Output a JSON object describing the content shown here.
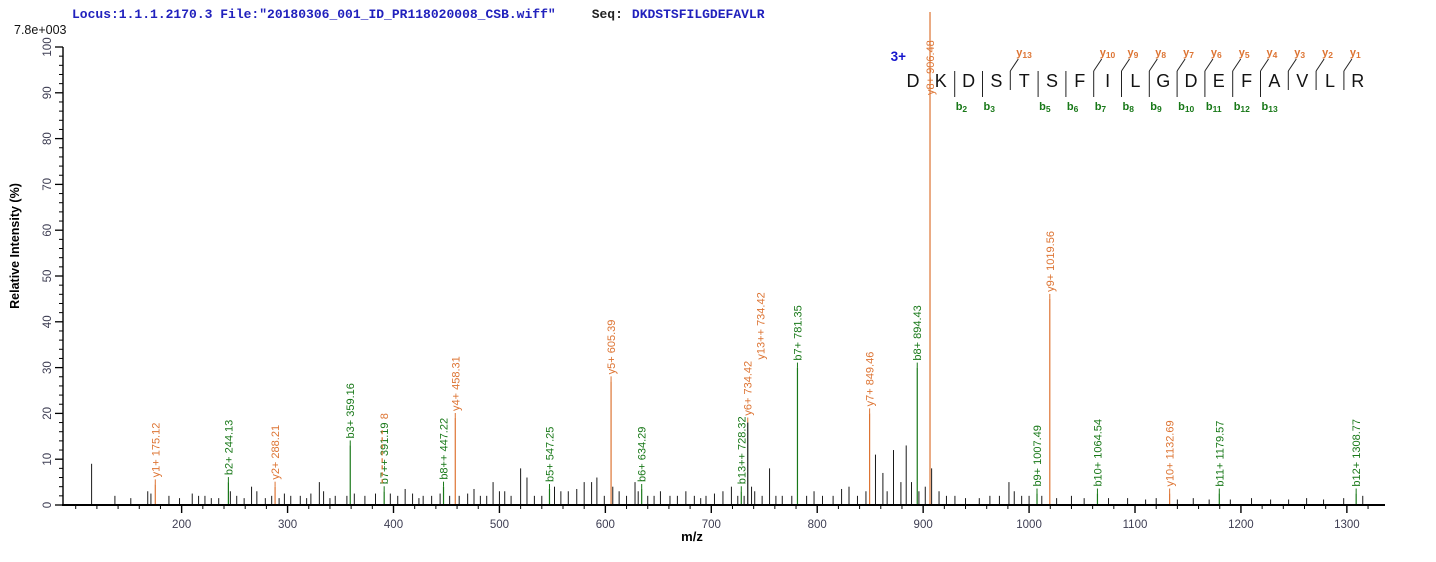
{
  "header": {
    "locus_file": "Locus:1.1.1.2170.3 File:\"20180306_001_ID_PR118020008_CSB.wiff\"",
    "seq_label": "Seq:",
    "sequence": "DKDSTSFILGDEFAVLR",
    "scale_label": "7.8e+003"
  },
  "chart_data": {
    "type": "bar",
    "subtype": "ms2-centroid-mass-spectrum",
    "title": "",
    "xlabel": "m/z",
    "ylabel": "Relative  Intensity (%)",
    "xlim": [
      88,
      1336
    ],
    "ylim": [
      0,
      100
    ],
    "grid": false,
    "x_major_ticks": [
      200,
      300,
      400,
      500,
      600,
      700,
      800,
      900,
      1000,
      1100,
      1200,
      1300
    ],
    "x_minor_step": 20,
    "y_major_step": 10,
    "y_minor_step": 2,
    "colors": {
      "y_ion": "#dd7433",
      "b_ion": "#187818",
      "unassigned": "#1a1a1a",
      "axis": "#000000",
      "tick_label": "#3d3d52",
      "header_blue": "#2121bd",
      "charge": "#1515cc"
    },
    "precursor_charge": "3+",
    "labeled_peaks": [
      {
        "label": "y1+ 175.12",
        "mz": 175.12,
        "intensity": 4.5,
        "series": "y"
      },
      {
        "label": "b2+ 244.13",
        "mz": 244.13,
        "intensity": 5,
        "series": "b"
      },
      {
        "label": "y2+ 288.21",
        "mz": 288.21,
        "intensity": 4,
        "series": "y"
      },
      {
        "label": "b3+ 359.16",
        "mz": 359.16,
        "intensity": 13,
        "series": "b"
      },
      {
        "label": "b7++ 391.19",
        "mz": 391.19,
        "intensity": 3,
        "series": "b",
        "overlay_label": {
          "text": "8",
          "series": "y",
          "dashed_leader": true
        }
      },
      {
        "label": "b8++ 447.22",
        "mz": 447.22,
        "intensity": 4,
        "series": "b"
      },
      {
        "label": "y4+ 458.31",
        "mz": 458.31,
        "intensity": 19,
        "series": "y"
      },
      {
        "label": "b5+ 547.25",
        "mz": 547.25,
        "intensity": 3.5,
        "series": "b"
      },
      {
        "label": "y5+ 605.39",
        "mz": 605.39,
        "intensity": 27,
        "series": "y"
      },
      {
        "label": "b6+ 634.29",
        "mz": 634.29,
        "intensity": 3.5,
        "series": "b"
      },
      {
        "label": "b13++ 728.32",
        "mz": 728.32,
        "intensity": 3,
        "series": "b"
      },
      {
        "label": "y6+ 734.42",
        "label2": "y13++ 734.42",
        "mz": 734.42,
        "intensity": 18,
        "series": "y",
        "line_color": "unassigned"
      },
      {
        "label": "b7+ 781.35",
        "mz": 781.35,
        "intensity": 30,
        "series": "b"
      },
      {
        "label": "y7+ 849.46",
        "mz": 849.46,
        "intensity": 20,
        "series": "y"
      },
      {
        "label": "b8+ 894.43",
        "mz": 894.43,
        "intensity": 30,
        "series": "b"
      },
      {
        "label": "y8+ 906.48",
        "mz": 906.48,
        "intensity": 100,
        "series": "y",
        "line_to_top": true
      },
      {
        "label": "b9+ 1007.49",
        "mz": 1007.49,
        "intensity": 2.5,
        "series": "b"
      },
      {
        "label": "y9+ 1019.56",
        "mz": 1019.56,
        "intensity": 45,
        "series": "y"
      },
      {
        "label": "b10+ 1064.54",
        "mz": 1064.54,
        "intensity": 2.5,
        "series": "b"
      },
      {
        "label": "y10+ 1132.69",
        "mz": 1132.69,
        "intensity": 2.5,
        "series": "y"
      },
      {
        "label": "b11+ 1179.57",
        "mz": 1179.57,
        "intensity": 2.5,
        "series": "b"
      },
      {
        "label": "b12+ 1308.77",
        "mz": 1308.77,
        "intensity": 2.5,
        "series": "b"
      }
    ],
    "unlabeled_peaks": [
      [
        115,
        9
      ],
      [
        137,
        2
      ],
      [
        152,
        1.5
      ],
      [
        168,
        3
      ],
      [
        171,
        2.5
      ],
      [
        188,
        2
      ],
      [
        198,
        1.5
      ],
      [
        210,
        2.5
      ],
      [
        216,
        2
      ],
      [
        222,
        2
      ],
      [
        228,
        1.5
      ],
      [
        235,
        1.5
      ],
      [
        246,
        3
      ],
      [
        252,
        2
      ],
      [
        259,
        1.5
      ],
      [
        266,
        4
      ],
      [
        271,
        3
      ],
      [
        279,
        1.5
      ],
      [
        285,
        2
      ],
      [
        292,
        1.5
      ],
      [
        297,
        2.5
      ],
      [
        303,
        2
      ],
      [
        312,
        2
      ],
      [
        318,
        1.5
      ],
      [
        322,
        2.5
      ],
      [
        330,
        5
      ],
      [
        334,
        3
      ],
      [
        340,
        1.5
      ],
      [
        345,
        2
      ],
      [
        356,
        2
      ],
      [
        363,
        2.5
      ],
      [
        373,
        2
      ],
      [
        383,
        2.5
      ],
      [
        397,
        2.5
      ],
      [
        404,
        2
      ],
      [
        411,
        3.5
      ],
      [
        418,
        2.5
      ],
      [
        424,
        1.5
      ],
      [
        428,
        2
      ],
      [
        436,
        2
      ],
      [
        444,
        2.5
      ],
      [
        453,
        2
      ],
      [
        462,
        2
      ],
      [
        470,
        2.5
      ],
      [
        476,
        3.5
      ],
      [
        482,
        2
      ],
      [
        488,
        2
      ],
      [
        494,
        5
      ],
      [
        500,
        3
      ],
      [
        505,
        3
      ],
      [
        511,
        2
      ],
      [
        520,
        8
      ],
      [
        526,
        6
      ],
      [
        533,
        2
      ],
      [
        540,
        2
      ],
      [
        552,
        4
      ],
      [
        558,
        3
      ],
      [
        565,
        3
      ],
      [
        573,
        3.5
      ],
      [
        580,
        5
      ],
      [
        587,
        5
      ],
      [
        592,
        6
      ],
      [
        599,
        2
      ],
      [
        607,
        4
      ],
      [
        613,
        3
      ],
      [
        620,
        2
      ],
      [
        628,
        5
      ],
      [
        631,
        3
      ],
      [
        640,
        2
      ],
      [
        646,
        2
      ],
      [
        652,
        3
      ],
      [
        661,
        2
      ],
      [
        668,
        2
      ],
      [
        676,
        3
      ],
      [
        684,
        2
      ],
      [
        690,
        1.5
      ],
      [
        695,
        2
      ],
      [
        703,
        2.5
      ],
      [
        711,
        3
      ],
      [
        719,
        4
      ],
      [
        725,
        2
      ],
      [
        731,
        2
      ],
      [
        738,
        4
      ],
      [
        741,
        3
      ],
      [
        748,
        2
      ],
      [
        755,
        8
      ],
      [
        761,
        2
      ],
      [
        767,
        2
      ],
      [
        776,
        2
      ],
      [
        790,
        2
      ],
      [
        797,
        3
      ],
      [
        805,
        2
      ],
      [
        815,
        2
      ],
      [
        823,
        3.5
      ],
      [
        830,
        4
      ],
      [
        838,
        2
      ],
      [
        846,
        3
      ],
      [
        855,
        11
      ],
      [
        862,
        7
      ],
      [
        866,
        3
      ],
      [
        872,
        12
      ],
      [
        879,
        5
      ],
      [
        884,
        13
      ],
      [
        889,
        5
      ],
      [
        896,
        3
      ],
      [
        902,
        4
      ],
      [
        908,
        8
      ],
      [
        915,
        3
      ],
      [
        922,
        2
      ],
      [
        930,
        2
      ],
      [
        940,
        1.5
      ],
      [
        953,
        1.5
      ],
      [
        963,
        2
      ],
      [
        972,
        2
      ],
      [
        981,
        5
      ],
      [
        986,
        3
      ],
      [
        993,
        2
      ],
      [
        1000,
        2
      ],
      [
        1012,
        2
      ],
      [
        1026,
        1.5
      ],
      [
        1040,
        2
      ],
      [
        1052,
        1.5
      ],
      [
        1075,
        1.5
      ],
      [
        1093,
        1.5
      ],
      [
        1110,
        1.2
      ],
      [
        1120,
        1.5
      ],
      [
        1140,
        1.2
      ],
      [
        1155,
        1.5
      ],
      [
        1170,
        1.2
      ],
      [
        1190,
        1.2
      ],
      [
        1210,
        1.5
      ],
      [
        1228,
        1.2
      ],
      [
        1245,
        1.2
      ],
      [
        1262,
        1.5
      ],
      [
        1278,
        1.2
      ],
      [
        1297,
        1.5
      ],
      [
        1315,
        2
      ]
    ],
    "fragmentation": {
      "charge": "3+",
      "residues": [
        "D",
        "K",
        "D",
        "S",
        "T",
        "S",
        "F",
        "I",
        "L",
        "G",
        "D",
        "E",
        "F",
        "A",
        "V",
        "L",
        "R"
      ],
      "cleavages": [
        {
          "pos": 2,
          "b": "b2"
        },
        {
          "pos": 3,
          "b": "b3"
        },
        {
          "pos": 4,
          "y": "y13"
        },
        {
          "pos": 5,
          "b": "b5"
        },
        {
          "pos": 6,
          "b": "b6"
        },
        {
          "pos": 7,
          "b": "b7",
          "y": "y10"
        },
        {
          "pos": 8,
          "b": "b8",
          "y": "y9"
        },
        {
          "pos": 9,
          "b": "b9",
          "y": "y8"
        },
        {
          "pos": 10,
          "b": "b10",
          "y": "y7"
        },
        {
          "pos": 11,
          "b": "b11",
          "y": "y6"
        },
        {
          "pos": 12,
          "b": "b12",
          "y": "y5"
        },
        {
          "pos": 13,
          "b": "b13",
          "y": "y4"
        },
        {
          "pos": 14,
          "y": "y3"
        },
        {
          "pos": 15,
          "y": "y2"
        },
        {
          "pos": 16,
          "y": "y1"
        }
      ]
    }
  }
}
